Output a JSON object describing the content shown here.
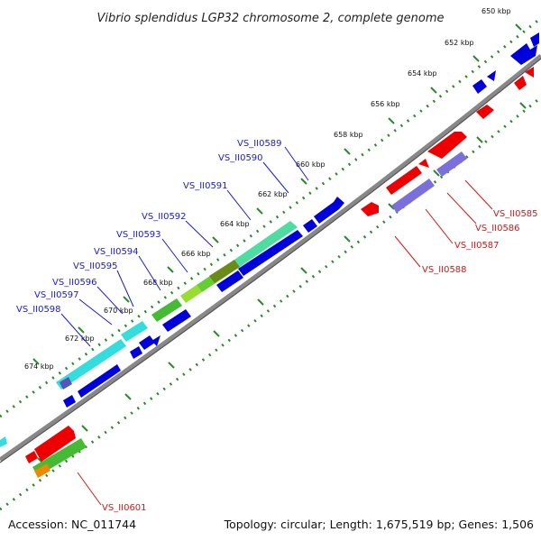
{
  "title": "Vibrio splendidus LGP32 chromosome 2, complete genome",
  "footer": {
    "accession": "Accession: NC_011744",
    "topology": "Topology: circular; Length: 1,675,519 bp; Genes: 1,506"
  },
  "colors": {
    "backbone": "#8a8a8a",
    "ticks": "#2a8a2a",
    "forward_gene": "#0000dd",
    "reverse_gene": "#ee0000",
    "label_blue": "#1a1ad6",
    "label_red": "#d01818"
  },
  "positions_kbp": [
    "650 kbp",
    "652 kbp",
    "654 kbp",
    "656 kbp",
    "658 kbp",
    "660 kbp",
    "662 kbp",
    "664 kbp",
    "666 kbp",
    "668 kbp",
    "670 kbp",
    "672 kbp",
    "674 kbp"
  ],
  "gene_labels_blue": [
    "VS_II0589",
    "VS_II0590",
    "VS_II0591",
    "VS_II0592",
    "VS_II0593",
    "VS_II0594",
    "VS_II0595",
    "VS_II0596",
    "VS_II0597",
    "VS_II0598"
  ],
  "gene_labels_red": [
    "VS_II0585",
    "VS_II0586",
    "VS_II0587",
    "VS_II0588",
    "VS_II0601"
  ]
}
